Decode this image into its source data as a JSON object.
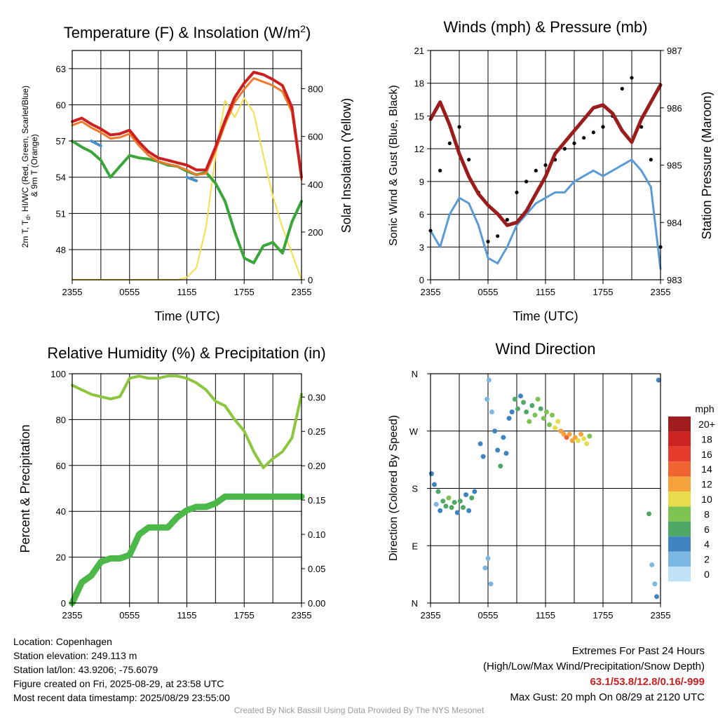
{
  "chart_data": [
    {
      "type": "line",
      "title": "Temperature (F) & Insolation (W/m²)",
      "xlabel": "Time (UTC)",
      "ylabel": "2m T, Td, HI/WC (Red, Green, Scarlet/Blue) & 9m T (Orange)",
      "y2label": "Solar Insolation (Yellow)",
      "x_ticks": [
        "2355",
        "0555",
        "1155",
        "1755",
        "2355"
      ],
      "ylim": [
        45.5,
        64.5
      ],
      "y_ticks": [
        48,
        51,
        54,
        57,
        60,
        63
      ],
      "y2lim": [
        0,
        960
      ],
      "y2_ticks": [
        0,
        200,
        400,
        600,
        800
      ],
      "x_hours": [
        0,
        1,
        2,
        3,
        4,
        5,
        6,
        7,
        8,
        9,
        10,
        11,
        12,
        13,
        14,
        15,
        16,
        17,
        18,
        19,
        20,
        21,
        22,
        23,
        24
      ],
      "series": [
        {
          "name": "2m T",
          "color": "#cc2020",
          "axis": "left",
          "values": [
            58.6,
            58.9,
            58.4,
            58.0,
            57.5,
            57.6,
            57.9,
            56.9,
            56.1,
            55.6,
            55.4,
            55.2,
            55.0,
            54.6,
            54.6,
            56.5,
            58.7,
            60.6,
            61.8,
            62.7,
            62.5,
            62.1,
            61.6,
            59.8,
            54.0
          ]
        },
        {
          "name": "9m T",
          "color": "#f07a2a",
          "axis": "left",
          "values": [
            58.3,
            58.6,
            58.1,
            57.7,
            57.2,
            57.3,
            57.6,
            56.6,
            55.8,
            55.3,
            55.1,
            54.9,
            54.6,
            54.2,
            54.3,
            56.2,
            58.4,
            60.2,
            61.3,
            62.2,
            61.9,
            61.6,
            61.1,
            59.4,
            53.8
          ]
        },
        {
          "name": "HI/WC",
          "color": "#4a90c8",
          "axis": "left",
          "values": [
            null,
            null,
            57.0,
            56.6,
            null,
            null,
            null,
            null,
            null,
            null,
            null,
            null,
            54.0,
            53.7,
            null,
            null,
            null,
            null,
            null,
            null,
            null,
            null,
            null,
            null,
            null
          ]
        },
        {
          "name": "Td",
          "color": "#3aa63a",
          "axis": "left",
          "values": [
            57.0,
            56.5,
            56.1,
            55.4,
            54.0,
            54.9,
            55.8,
            55.6,
            55.5,
            55.3,
            55.0,
            54.9,
            54.5,
            54.2,
            54.4,
            53.5,
            52.0,
            49.5,
            47.3,
            46.9,
            48.3,
            48.6,
            47.7,
            50.3,
            52.0
          ]
        },
        {
          "name": "Solar Insolation",
          "color": "#f7de4a",
          "axis": "right",
          "values": [
            0,
            0,
            0,
            0,
            0,
            0,
            0,
            0,
            0,
            0,
            0,
            0,
            10,
            50,
            220,
            520,
            750,
            680,
            760,
            700,
            520,
            350,
            220,
            110,
            0
          ]
        }
      ]
    },
    {
      "type": "line",
      "title": "Winds (mph) & Pressure (mb)",
      "xlabel": "Time (UTC)",
      "ylabel": "Sonic Wind & Gust (Blue, Black)",
      "y2label": "Station Pressure (Maroon)",
      "x_ticks": [
        "2355",
        "0555",
        "1155",
        "1755",
        "2355"
      ],
      "ylim": [
        0,
        21
      ],
      "y_ticks": [
        0,
        3,
        6,
        9,
        12,
        15,
        18,
        21
      ],
      "y2lim": [
        983,
        987
      ],
      "y2_ticks": [
        983,
        984,
        985,
        986,
        987
      ],
      "x_hours": [
        0,
        1,
        2,
        3,
        4,
        5,
        6,
        7,
        8,
        9,
        10,
        11,
        12,
        13,
        14,
        15,
        16,
        17,
        18,
        19,
        20,
        21,
        22,
        23,
        24
      ],
      "series": [
        {
          "name": "Sonic Wind",
          "color": "#5b9bd5",
          "axis": "left",
          "values": [
            4.5,
            3.0,
            6.0,
            7.5,
            7.0,
            5.0,
            2.0,
            1.5,
            3.0,
            5.0,
            6.0,
            7.0,
            7.5,
            8.0,
            8.0,
            9.0,
            9.5,
            10.0,
            9.5,
            10.0,
            10.5,
            11.0,
            10.0,
            8.5,
            1.0
          ]
        },
        {
          "name": "Gust",
          "color": "#000000",
          "axis": "left",
          "values": [
            4.5,
            10.0,
            12.5,
            14.0,
            11.0,
            8.0,
            3.5,
            4.0,
            5.5,
            8.0,
            9.0,
            10.0,
            10.5,
            11.0,
            12.0,
            12.5,
            13.0,
            13.5,
            14.0,
            15.0,
            17.5,
            18.5,
            14.0,
            11.0,
            3.0
          ]
        },
        {
          "name": "Station Pressure",
          "color": "#9b1c1c",
          "axis": "right",
          "values": [
            985.8,
            986.1,
            985.7,
            985.2,
            984.8,
            984.5,
            984.3,
            984.15,
            983.95,
            984.0,
            984.2,
            984.5,
            984.8,
            985.2,
            985.4,
            985.6,
            985.8,
            986.0,
            986.05,
            985.9,
            985.6,
            985.4,
            985.8,
            986.1,
            986.4
          ]
        }
      ]
    },
    {
      "type": "line",
      "title": "Relative Humidity (%) & Precipitation (in)",
      "xlabel": "",
      "ylabel": "Percent & Precipitation",
      "x_ticks": [
        "2355",
        "0555",
        "1155",
        "1755",
        "2355"
      ],
      "ylim": [
        0,
        100
      ],
      "y_ticks": [
        0,
        20,
        40,
        60,
        80,
        100
      ],
      "y2lim": [
        0,
        0.334
      ],
      "y2_ticks": [
        "0.00",
        "0.05",
        "0.10",
        "0.15",
        "0.20",
        "0.25",
        "0.30"
      ],
      "x_hours": [
        0,
        1,
        2,
        3,
        4,
        5,
        6,
        7,
        8,
        9,
        10,
        11,
        12,
        13,
        14,
        15,
        16,
        17,
        18,
        19,
        20,
        21,
        22,
        23,
        24
      ],
      "series": [
        {
          "name": "Relative Humidity",
          "color": "#8cc63f",
          "axis": "left",
          "values": [
            95,
            93,
            91,
            90,
            89,
            90,
            98,
            99,
            98,
            98,
            99,
            99,
            98,
            96,
            93,
            88,
            86,
            80,
            75,
            66,
            59,
            63,
            66,
            72,
            91
          ]
        },
        {
          "name": "Precipitation",
          "color": "#4cb848",
          "axis": "right",
          "values": [
            0.0,
            0.03,
            0.04,
            0.06,
            0.065,
            0.065,
            0.07,
            0.1,
            0.11,
            0.11,
            0.11,
            0.125,
            0.135,
            0.14,
            0.14,
            0.145,
            0.155,
            0.155,
            0.155,
            0.155,
            0.155,
            0.155,
            0.155,
            0.155,
            0.155
          ]
        }
      ]
    },
    {
      "type": "scatter",
      "title": "Wind Direction",
      "ylabel": "Direction (Colored By Speed)",
      "x_ticks": [
        "2355",
        "0555",
        "1155",
        "1755",
        "2355"
      ],
      "y_ticks": [
        "N",
        "E",
        "S",
        "W",
        "N"
      ],
      "ylim": [
        0,
        360
      ],
      "legend_title": "mph",
      "legend": [
        "20+",
        "18",
        "16",
        "14",
        "12",
        "10",
        "8",
        "6",
        "4",
        "2",
        "0"
      ],
      "legend_colors": [
        "#a11d1d",
        "#cc2222",
        "#e53a2c",
        "#f06432",
        "#f5a23c",
        "#e8dc4c",
        "#7ec352",
        "#4ea866",
        "#3f83c3",
        "#7ab8e3",
        "#bfe3f5"
      ],
      "points": [
        [
          0.1,
          203,
          4
        ],
        [
          0.4,
          186,
          3
        ],
        [
          0.6,
          155,
          2
        ],
        [
          0.8,
          175,
          5
        ],
        [
          1.0,
          145,
          4
        ],
        [
          1.3,
          160,
          6
        ],
        [
          1.6,
          152,
          5
        ],
        [
          1.9,
          165,
          7
        ],
        [
          2.2,
          150,
          6
        ],
        [
          2.5,
          158,
          5
        ],
        [
          2.8,
          142,
          4
        ],
        [
          3.1,
          160,
          6
        ],
        [
          3.4,
          150,
          5
        ],
        [
          3.7,
          170,
          3
        ],
        [
          4.0,
          145,
          4
        ],
        [
          4.3,
          165,
          5
        ],
        [
          4.6,
          175,
          3
        ],
        [
          5.2,
          250,
          3
        ],
        [
          5.5,
          230,
          4
        ],
        [
          5.7,
          55,
          1
        ],
        [
          6.0,
          70,
          2
        ],
        [
          6.3,
          30,
          1
        ],
        [
          5.9,
          320,
          2
        ],
        [
          6.1,
          350,
          1
        ],
        [
          6.4,
          300,
          2
        ],
        [
          6.7,
          270,
          4
        ],
        [
          7.0,
          240,
          3
        ],
        [
          7.3,
          215,
          5
        ],
        [
          7.6,
          260,
          4
        ],
        [
          7.9,
          235,
          3
        ],
        [
          8.2,
          290,
          4
        ],
        [
          8.5,
          300,
          3
        ],
        [
          8.8,
          320,
          5
        ],
        [
          9.1,
          305,
          6
        ],
        [
          9.4,
          325,
          4
        ],
        [
          9.7,
          315,
          5
        ],
        [
          10.0,
          300,
          6
        ],
        [
          10.3,
          285,
          7
        ],
        [
          10.6,
          310,
          6
        ],
        [
          10.9,
          295,
          7
        ],
        [
          11.2,
          320,
          8
        ],
        [
          11.5,
          305,
          6
        ],
        [
          11.8,
          290,
          7
        ],
        [
          12.1,
          300,
          8
        ],
        [
          12.4,
          280,
          7
        ],
        [
          12.7,
          295,
          8
        ],
        [
          13.0,
          275,
          9
        ],
        [
          13.3,
          285,
          10
        ],
        [
          13.6,
          270,
          11
        ],
        [
          13.9,
          265,
          12
        ],
        [
          14.2,
          260,
          13
        ],
        [
          14.5,
          265,
          12
        ],
        [
          14.8,
          255,
          11
        ],
        [
          15.1,
          260,
          12
        ],
        [
          15.4,
          255,
          10
        ],
        [
          15.7,
          265,
          11
        ],
        [
          16.0,
          258,
          10
        ],
        [
          16.3,
          250,
          9
        ],
        [
          16.6,
          262,
          8
        ],
        [
          22.8,
          140,
          5
        ],
        [
          23.1,
          60,
          2
        ],
        [
          23.4,
          30,
          2
        ],
        [
          23.6,
          10,
          3
        ],
        [
          23.8,
          350,
          3
        ]
      ],
      "x_scale_hours": 24
    }
  ],
  "info_left": {
    "location": "Location: Copenhagen",
    "elevation": "Station elevation: 249.113 m",
    "latlon": "Station lat/lon: 43.9206; -75.6079",
    "created": "Figure created on Fri, 2025-08-29, at 23:58 UTC",
    "recent": "Most recent data timestamp: 2025/08/29 23:55:00"
  },
  "info_right": {
    "heading": "Extremes For Past 24 Hours",
    "subheading": "(High/Low/Max Wind/Precipitation/Snow Depth)",
    "values": "63.1/53.8/12.8/0.16/-999",
    "gust": "Max Gust: 20 mph On 08/29 at 2120 UTC"
  },
  "credit": "Created By Nick Bassill Using Data Provided By The NYS Mesonet"
}
